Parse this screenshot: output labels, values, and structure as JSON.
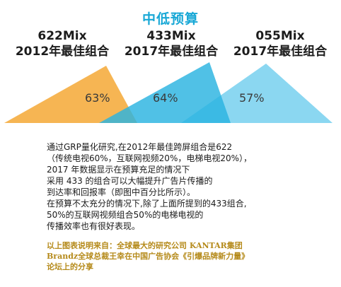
{
  "title": "中低预算",
  "combos": [
    {
      "mix": "622Mix",
      "year": "2012年最佳组合",
      "percent": "63%",
      "color": "#f5b14a"
    },
    {
      "mix": "433Mix",
      "year": "2017年最佳组合",
      "percent": "64%",
      "color": "#29b3e0"
    },
    {
      "mix": "055Mix",
      "year": "2017年最佳组合",
      "percent": "57%",
      "color": "#7ed3ef"
    }
  ],
  "paragraph": [
    "通过GRP量化研究,在2012年最佳跨屏组合是622",
    "（传统电视60%，互联网视频20%，电梯电视20%），",
    "2017 年数据显示在预算充足的情况下",
    "采用 433 的组合可以大幅提升广告片传播的",
    "到达率和回报率（即图中百分比所示）。",
    " 在预算不太充分的情况下,除了上面所提到的433组合,",
    "50%的互联网视频组合50%的电梯电视的",
    "传播效率也有很好表现。"
  ],
  "source": [
    "以上图表说明来自：全球最大的研究公司 KANTAR集团",
    "Brandz全球总裁王幸在中国广告协会《引爆品牌新力量》",
    "论坛上的分享"
  ]
}
